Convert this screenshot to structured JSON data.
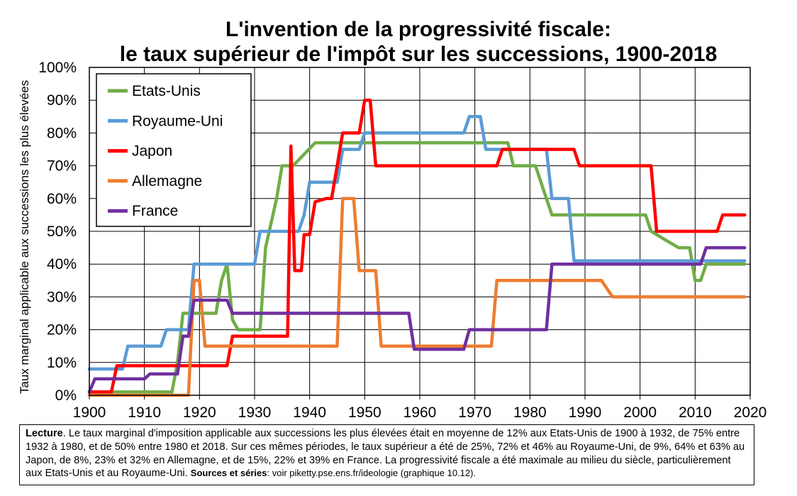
{
  "chart_data": {
    "type": "line",
    "title_line1": "L'invention de la progressivité fiscale:",
    "title_line2": "le taux supérieur de l'impôt sur les successions, 1900-2018",
    "ylabel": "Taux marginal applicable aux successions les plus élevées",
    "xlabel": "",
    "xlim": [
      1900,
      2020
    ],
    "ylim": [
      0,
      100
    ],
    "x_ticks": [
      "1900",
      "1910",
      "1920",
      "1930",
      "1940",
      "1950",
      "1960",
      "1970",
      "1980",
      "1990",
      "2000",
      "2010",
      "2020"
    ],
    "y_ticks": [
      "0%",
      "10%",
      "20%",
      "30%",
      "40%",
      "50%",
      "60%",
      "70%",
      "80%",
      "90%",
      "100%"
    ],
    "grid": true,
    "legend_position": "top-left",
    "series": [
      {
        "name": "Etats-Unis",
        "color": "#70ad47",
        "points": [
          [
            1900,
            1
          ],
          [
            1915,
            1
          ],
          [
            1916,
            10
          ],
          [
            1917,
            25
          ],
          [
            1921,
            25
          ],
          [
            1923,
            25
          ],
          [
            1924,
            35
          ],
          [
            1925,
            40
          ],
          [
            1926,
            23
          ],
          [
            1927,
            20
          ],
          [
            1931,
            20
          ],
          [
            1932,
            45
          ],
          [
            1934,
            60
          ],
          [
            1935,
            70
          ],
          [
            1937,
            70
          ],
          [
            1941,
            77
          ],
          [
            1976,
            77
          ],
          [
            1977,
            70
          ],
          [
            1981,
            70
          ],
          [
            1983,
            60
          ],
          [
            1984,
            55
          ],
          [
            2001,
            55
          ],
          [
            2002,
            50
          ],
          [
            2005,
            47
          ],
          [
            2007,
            45
          ],
          [
            2009,
            45
          ],
          [
            2010,
            35
          ],
          [
            2011,
            35
          ],
          [
            2012,
            40
          ],
          [
            2019,
            40
          ]
        ]
      },
      {
        "name": "Royaume-Uni",
        "color": "#5b9bd5",
        "points": [
          [
            1900,
            8
          ],
          [
            1906,
            8
          ],
          [
            1907,
            15
          ],
          [
            1913,
            15
          ],
          [
            1914,
            20
          ],
          [
            1918,
            20
          ],
          [
            1919,
            40
          ],
          [
            1930,
            40
          ],
          [
            1931,
            50
          ],
          [
            1938,
            50
          ],
          [
            1939,
            55
          ],
          [
            1940,
            65
          ],
          [
            1945,
            65
          ],
          [
            1946,
            75
          ],
          [
            1949,
            75
          ],
          [
            1950,
            80
          ],
          [
            1968,
            80
          ],
          [
            1969,
            85
          ],
          [
            1971,
            85
          ],
          [
            1972,
            75
          ],
          [
            1975,
            75
          ],
          [
            1976,
            75
          ],
          [
            1983,
            75
          ],
          [
            1984,
            60
          ],
          [
            1987,
            60
          ],
          [
            1988,
            41
          ],
          [
            2019,
            41
          ]
        ]
      },
      {
        "name": "Japon",
        "color": "#ff0000",
        "points": [
          [
            1900,
            1
          ],
          [
            1904,
            1
          ],
          [
            1905,
            9
          ],
          [
            1913,
            9
          ],
          [
            1914,
            9
          ],
          [
            1916,
            9
          ],
          [
            1918,
            9
          ],
          [
            1925,
            9
          ],
          [
            1926,
            18
          ],
          [
            1936,
            18
          ],
          [
            1936.6,
            76
          ],
          [
            1937.3,
            38
          ],
          [
            1938.5,
            38
          ],
          [
            1939,
            49
          ],
          [
            1940,
            49
          ],
          [
            1941,
            59
          ],
          [
            1943,
            60
          ],
          [
            1944,
            60
          ],
          [
            1946,
            80
          ],
          [
            1948,
            80
          ],
          [
            1949,
            80
          ],
          [
            1950,
            90
          ],
          [
            1951,
            90
          ],
          [
            1952,
            70
          ],
          [
            1974,
            70
          ],
          [
            1975,
            75
          ],
          [
            1988,
            75
          ],
          [
            1989,
            70
          ],
          [
            2002,
            70
          ],
          [
            2003,
            50
          ],
          [
            2014,
            50
          ],
          [
            2015,
            55
          ],
          [
            2019,
            55
          ]
        ]
      },
      {
        "name": "Allemagne",
        "color": "#ed7d31",
        "points": [
          [
            1900,
            0
          ],
          [
            1918,
            0
          ],
          [
            1919,
            35
          ],
          [
            1920,
            35
          ],
          [
            1921,
            15
          ],
          [
            1945,
            15
          ],
          [
            1946,
            60
          ],
          [
            1948,
            60
          ],
          [
            1949,
            38
          ],
          [
            1952,
            38
          ],
          [
            1953,
            15
          ],
          [
            1972,
            15
          ],
          [
            1973,
            15
          ],
          [
            1974,
            35
          ],
          [
            1992,
            35
          ],
          [
            1993,
            35
          ],
          [
            1995,
            30
          ],
          [
            1996,
            30
          ],
          [
            2019,
            30
          ]
        ]
      },
      {
        "name": "France",
        "color": "#7030a0",
        "points": [
          [
            1900,
            1
          ],
          [
            1901,
            5
          ],
          [
            1910,
            5
          ],
          [
            1911,
            6.5
          ],
          [
            1916,
            6.5
          ],
          [
            1917,
            18
          ],
          [
            1918,
            18
          ],
          [
            1919,
            29
          ],
          [
            1925,
            29
          ],
          [
            1926,
            25
          ],
          [
            1958,
            25
          ],
          [
            1959,
            14
          ],
          [
            1968,
            14
          ],
          [
            1969,
            20
          ],
          [
            1983,
            20
          ],
          [
            1984,
            40
          ],
          [
            2011,
            40
          ],
          [
            2012,
            45
          ],
          [
            2019,
            45
          ]
        ]
      }
    ]
  },
  "note": {
    "label": "Lecture",
    "text": ". Le taux marginal d'imposition applicable aux successions les plus élevées était en moyenne de 12% aux Etats-Unis de 1900 à 1932, de 75% entre 1932 à 1980, et de 50% entre 1980 et 2018. Sur ces mêmes périodes, le taux supérieur a été de 25%, 72% et 46% au Royaume-Uni, de 9%, 64% et 63% au Japon, de 8%, 23% et 32% en Allemagne, et de 15%, 22% et 39% en France. La progressivité fiscale a été maximale au milieu du siècle, particulièrement aux Etats-Unis et au Royaume-Uni. ",
    "sources_label": "Sources et séries",
    "sources_text": ": voir piketty.pse.ens.fr/ideologie (graphique 10.12)."
  }
}
